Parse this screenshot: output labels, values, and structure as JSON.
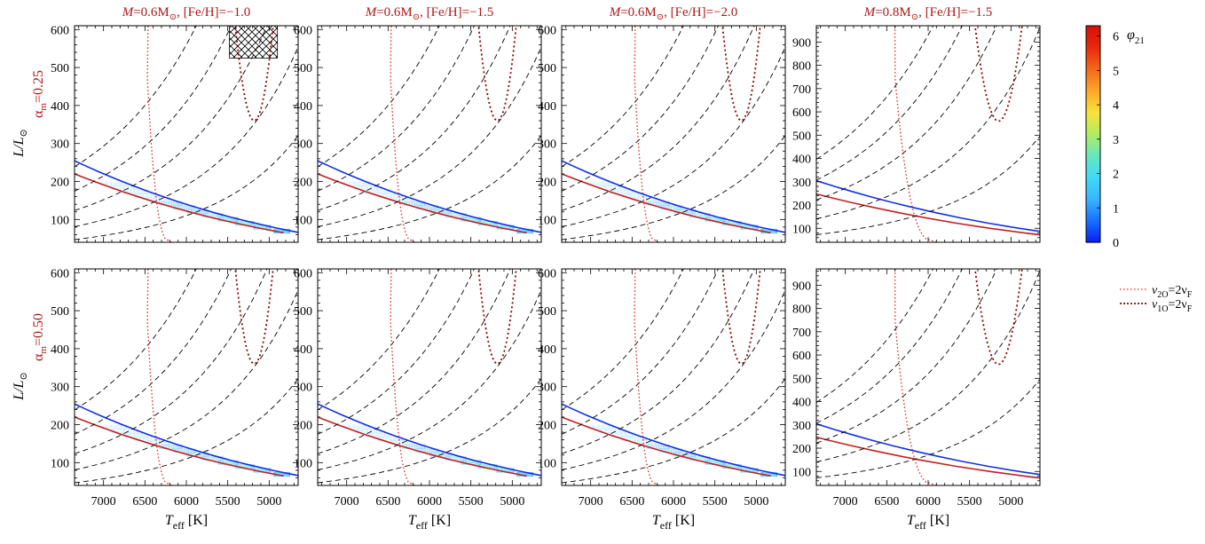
{
  "chart_data": {
    "type": "heatmap",
    "layout": {
      "rows": 2,
      "cols": 4
    },
    "columns": [
      {
        "title": {
          "pre": "M",
          "mid": "=0.6M",
          "post": ", [Fe/H]=−1.0"
        },
        "mass": 0.6,
        "feh": -1.0
      },
      {
        "title": {
          "pre": "M",
          "mid": "=0.6M",
          "post": ", [Fe/H]=−1.5"
        },
        "mass": 0.6,
        "feh": -1.5
      },
      {
        "title": {
          "pre": "M",
          "mid": "=0.6M",
          "post": ", [Fe/H]=−2.0"
        },
        "mass": 0.6,
        "feh": -2.0
      },
      {
        "title": {
          "pre": "M",
          "mid": "=0.8M",
          "post": ", [Fe/H]=−1.5"
        },
        "mass": 0.8,
        "feh": -1.5
      }
    ],
    "rows": [
      {
        "label": {
          "main": "α",
          "sub": "m",
          "value": "=0.25"
        },
        "alpha_m": 0.25
      },
      {
        "label": {
          "main": "α",
          "sub": "m",
          "value": "=0.50"
        },
        "alpha_m": 0.5
      }
    ],
    "xaxis": {
      "label_main": "T",
      "label_sub": "eff",
      "label_unit": " [K]",
      "range": [
        7350,
        4650
      ],
      "reversed": true,
      "ticks": [
        7000,
        6500,
        6000,
        5500,
        5000
      ]
    },
    "yaxis": {
      "label_main": "L/L",
      "sub": "⊙",
      "ranges": {
        "0.6": [
          40,
          610
        ],
        "0.8": [
          40,
          970
        ]
      },
      "ticks": {
        "0.6": [
          100,
          200,
          300,
          400,
          500,
          600
        ],
        "0.8": [
          100,
          200,
          300,
          400,
          500,
          600,
          700,
          800,
          900
        ]
      }
    },
    "colorbar": {
      "label_main": "φ",
      "label_sub": "21",
      "range": [
        0,
        6.3
      ],
      "ticks": [
        0,
        1,
        2,
        3,
        4,
        5,
        6
      ],
      "colormap": [
        "#0a1ef0",
        "#1470ff",
        "#3ab4ff",
        "#40d8f8",
        "#64e8c0",
        "#b0ec60",
        "#f8e23a",
        "#fca82a",
        "#f46a18",
        "#e82a0c",
        "#d81008"
      ]
    },
    "legend": {
      "position": "right",
      "entries": [
        {
          "main": "ν",
          "sub1": "2O",
          "eq": "=2ν",
          "sub2": "F",
          "color": "#e02020",
          "dash": "dotted-fine"
        },
        {
          "main": "ν",
          "sub1": "1O",
          "eq": "=2ν",
          "sub2": "F",
          "color": "#8b0000",
          "dash": "dotted-coarse"
        }
      ]
    },
    "hatched_region": {
      "panel": "row1-col1",
      "teff": [
        5480,
        4900
      ],
      "L": [
        525,
        610
      ]
    },
    "grid": false
  }
}
